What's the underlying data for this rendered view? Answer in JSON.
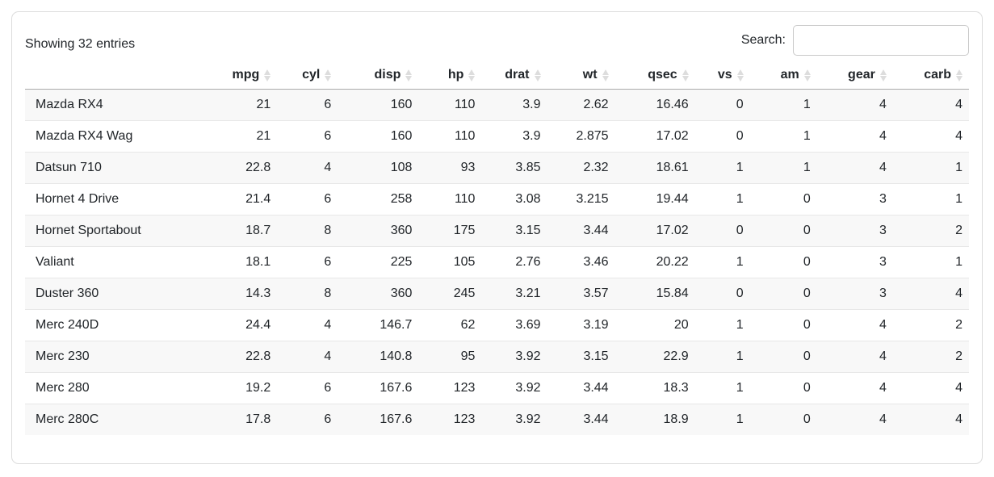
{
  "info_text": "Showing 32 entries",
  "search": {
    "label": "Search:",
    "value": ""
  },
  "table": {
    "columns": [
      "",
      "mpg",
      "cyl",
      "disp",
      "hp",
      "drat",
      "wt",
      "qsec",
      "vs",
      "am",
      "gear",
      "carb"
    ],
    "rows": [
      [
        "Mazda RX4",
        "21",
        "6",
        "160",
        "110",
        "3.9",
        "2.62",
        "16.46",
        "0",
        "1",
        "4",
        "4"
      ],
      [
        "Mazda RX4 Wag",
        "21",
        "6",
        "160",
        "110",
        "3.9",
        "2.875",
        "17.02",
        "0",
        "1",
        "4",
        "4"
      ],
      [
        "Datsun 710",
        "22.8",
        "4",
        "108",
        "93",
        "3.85",
        "2.32",
        "18.61",
        "1",
        "1",
        "4",
        "1"
      ],
      [
        "Hornet 4 Drive",
        "21.4",
        "6",
        "258",
        "110",
        "3.08",
        "3.215",
        "19.44",
        "1",
        "0",
        "3",
        "1"
      ],
      [
        "Hornet Sportabout",
        "18.7",
        "8",
        "360",
        "175",
        "3.15",
        "3.44",
        "17.02",
        "0",
        "0",
        "3",
        "2"
      ],
      [
        "Valiant",
        "18.1",
        "6",
        "225",
        "105",
        "2.76",
        "3.46",
        "20.22",
        "1",
        "0",
        "3",
        "1"
      ],
      [
        "Duster 360",
        "14.3",
        "8",
        "360",
        "245",
        "3.21",
        "3.57",
        "15.84",
        "0",
        "0",
        "3",
        "4"
      ],
      [
        "Merc 240D",
        "24.4",
        "4",
        "146.7",
        "62",
        "3.69",
        "3.19",
        "20",
        "1",
        "0",
        "4",
        "2"
      ],
      [
        "Merc 230",
        "22.8",
        "4",
        "140.8",
        "95",
        "3.92",
        "3.15",
        "22.9",
        "1",
        "0",
        "4",
        "2"
      ],
      [
        "Merc 280",
        "19.2",
        "6",
        "167.6",
        "123",
        "3.92",
        "3.44",
        "18.3",
        "1",
        "0",
        "4",
        "4"
      ],
      [
        "Merc 280C",
        "17.8",
        "6",
        "167.6",
        "123",
        "3.92",
        "3.44",
        "18.9",
        "1",
        "0",
        "4",
        "4"
      ]
    ]
  },
  "colors": {
    "text": "#212529",
    "card_border": "#dcdcdc",
    "header_border": "#ababab",
    "row_border": "#e7e7e7",
    "row_stripe": "#f8f8f8",
    "sort_icon": "#dddddd",
    "input_border": "#c9c9c9"
  }
}
